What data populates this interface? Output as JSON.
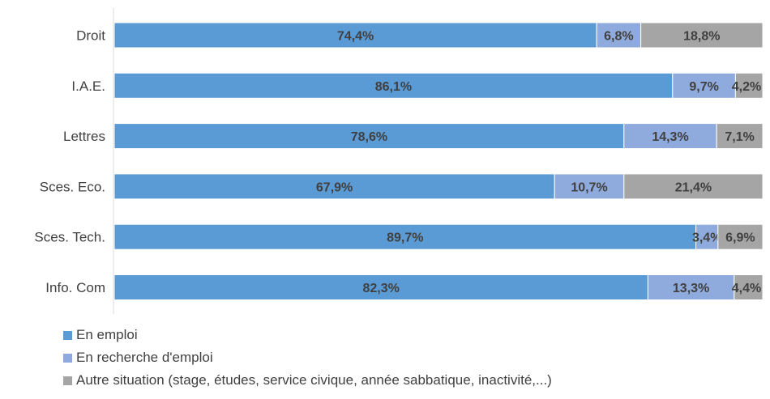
{
  "chart_data": {
    "type": "bar",
    "orientation": "horizontal",
    "stacked": true,
    "percent_stacked": true,
    "categories": [
      "Droit",
      "I.A.E.",
      "Lettres",
      "Sces. Eco.",
      "Sces. Tech.",
      "Info. Com"
    ],
    "series": [
      {
        "name": "En emploi",
        "color": "#5B9BD5",
        "values": [
          74.4,
          86.1,
          78.6,
          67.9,
          89.7,
          82.3
        ],
        "labels": [
          "74,4%",
          "86,1%",
          "78,6%",
          "67,9%",
          "89,7%",
          "82,3%"
        ]
      },
      {
        "name": "En recherche d'emploi",
        "color": "#8FAADC",
        "values": [
          6.8,
          9.7,
          14.3,
          10.7,
          3.4,
          13.3
        ],
        "labels": [
          "6,8%",
          "9,7%",
          "14,3%",
          "10,7%",
          "3,4%",
          "13,3%"
        ]
      },
      {
        "name": "Autre situation (stage, études, service civique, année sabbatique, inactivité,...)",
        "color": "#A5A5A5",
        "values": [
          18.8,
          4.2,
          7.1,
          21.4,
          6.9,
          4.4
        ],
        "labels": [
          "18,8%",
          "4,2%",
          "7,1%",
          "21,4%",
          "6,9%",
          "4,4%"
        ]
      }
    ],
    "xlim": [
      0,
      100
    ],
    "grid": false,
    "legend_position": "bottom-left"
  }
}
